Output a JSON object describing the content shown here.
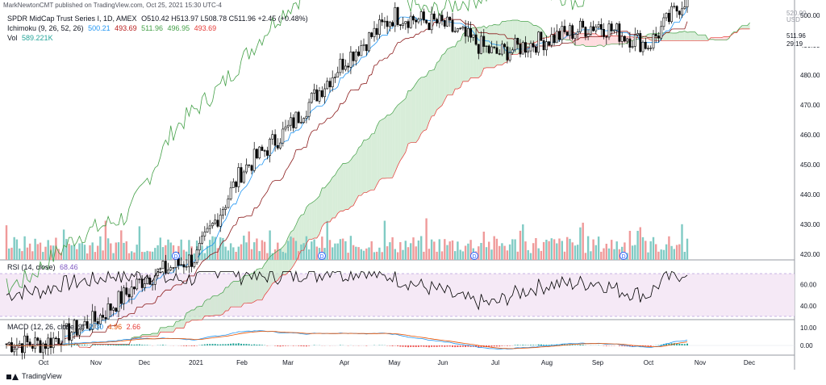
{
  "header": {
    "published": "MarkNewtonCMT published on TradingView.com, Oct 25, 2021 15:30 UTC-4"
  },
  "legend_main": {
    "symbol": "SPDR MidCap Trust Series I, 1D, AMEX",
    "ohlc": "O510.42 H513.97 L508.78 C511.96 +2.45 (+0.48%)"
  },
  "legend_ichimoku": {
    "name": "Ichimoku (9, 26, 52, 26)",
    "values": [
      "500.21",
      "493.69",
      "511.96",
      "496.95",
      "493.69"
    ],
    "colors": [
      "#2196f3",
      "#b71c1c",
      "#43a047",
      "#43a047",
      "#e53935"
    ]
  },
  "legend_vol": {
    "name": "Vol",
    "value": "589.221K"
  },
  "legend_rsi": {
    "name": "RSI (14, close)",
    "value": "68.46"
  },
  "legend_macd": {
    "name": "MACD (12, 26, close, 9)",
    "values": [
      "2.30",
      "4.96",
      "2.66"
    ],
    "colors": [
      "#2196f3",
      "#e65100",
      "#e53935"
    ]
  },
  "price_axis": {
    "currency": "USD",
    "last_price": "511.96",
    "countdown": "29:19",
    "top_label": "520.00"
  },
  "footer": {
    "brand": "TradingView"
  },
  "chart_data": [
    {
      "type": "candlestick",
      "title": "SPDR MidCap Trust Series I, 1D, AMEX",
      "x_ticks": [
        "Oct",
        "Nov",
        "Dec",
        "2021",
        "Feb",
        "Mar",
        "Apr",
        "May",
        "Jun",
        "Jul",
        "Aug",
        "Sep",
        "Oct",
        "Nov",
        "Dec"
      ],
      "y_ticks": [
        420,
        430,
        440,
        450,
        460,
        470,
        480,
        490,
        500,
        510
      ],
      "ylim": [
        416,
        524
      ],
      "resistance_level": 507,
      "price_path_monthly_close": [
        {
          "x": "Oct",
          "y": 390
        },
        {
          "x": "Nov",
          "y": 398
        },
        {
          "x": "Dec",
          "y": 412
        },
        {
          "x": "2021",
          "y": 419
        },
        {
          "x": "Feb",
          "y": 448
        },
        {
          "x": "Mar",
          "y": 462
        },
        {
          "x": "Apr",
          "y": 485
        },
        {
          "x": "May",
          "y": 500
        },
        {
          "x": "Jun",
          "y": 497
        },
        {
          "x": "Jul",
          "y": 487
        },
        {
          "x": "Aug",
          "y": 492
        },
        {
          "x": "Sep",
          "y": 497
        },
        {
          "x": "Oct",
          "y": 490
        },
        {
          "x": "Oct-end",
          "y": 511.96
        }
      ],
      "dividend_markers": [
        "Dec",
        "Mar",
        "Jun",
        "Sep"
      ],
      "marker_label": "D"
    },
    {
      "type": "line",
      "title": "RSI (14, close)",
      "y_ticks": [
        40,
        60
      ],
      "band": [
        30,
        70
      ],
      "last_value": 68.46
    },
    {
      "type": "bar",
      "title": "MACD (12, 26, close, 9)",
      "y_ticks": [
        0,
        10
      ],
      "last": {
        "macd": 2.3,
        "signal": 4.96,
        "hist": 2.66
      }
    }
  ]
}
